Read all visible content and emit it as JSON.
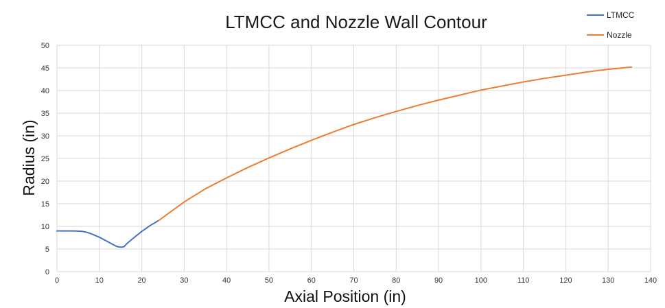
{
  "chart_data": {
    "type": "line",
    "title": "LTMCC and Nozzle Wall Contour",
    "xlabel": "Axial Position (in)",
    "ylabel": "Radius (in)",
    "xlim": [
      0,
      140
    ],
    "ylim": [
      0,
      50
    ],
    "xticks": [
      "0",
      "10",
      "20",
      "30",
      "40",
      "50",
      "60",
      "70",
      "80",
      "90",
      "100",
      "110",
      "120",
      "130",
      "140"
    ],
    "yticks": [
      "0",
      "5",
      "10",
      "15",
      "20",
      "25",
      "30",
      "35",
      "40",
      "45",
      "50"
    ],
    "grid": true,
    "legend_position": "top-right",
    "series": [
      {
        "name": "LTMCC",
        "color": "#4472C4",
        "x": [
          0,
          2,
          4,
          6,
          7,
          8,
          9,
          10,
          11,
          12,
          13,
          14,
          14.6,
          15.2,
          15.8,
          16.5,
          18,
          20,
          22,
          24
        ],
        "y": [
          9,
          9,
          9,
          8.9,
          8.7,
          8.4,
          8.0,
          7.6,
          7.1,
          6.6,
          6.1,
          5.6,
          5.45,
          5.4,
          5.5,
          6.2,
          7.4,
          8.9,
          10.2,
          11.3
        ]
      },
      {
        "name": "Nozzle",
        "color": "#ED7D31",
        "x": [
          24,
          30,
          35,
          40,
          45,
          50,
          55,
          60,
          65,
          70,
          75,
          80,
          85,
          90,
          95,
          100,
          105,
          110,
          115,
          120,
          125,
          130,
          135.5
        ],
        "y": [
          11.3,
          15.4,
          18.3,
          20.7,
          23.0,
          25.1,
          27.1,
          29.0,
          30.8,
          32.5,
          34.0,
          35.4,
          36.7,
          37.9,
          39.0,
          40.1,
          41.0,
          41.9,
          42.7,
          43.4,
          44.1,
          44.7,
          45.2
        ]
      }
    ]
  }
}
